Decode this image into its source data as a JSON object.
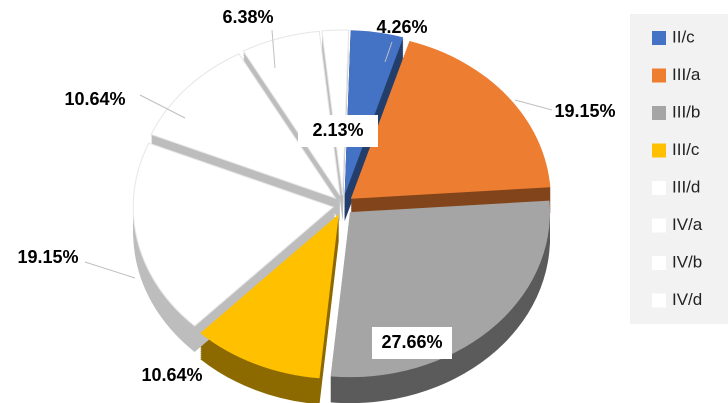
{
  "chart_data": {
    "type": "pie",
    "categories": [
      "II/c",
      "III/a",
      "III/b",
      "III/c",
      "III/d",
      "IV/a",
      "IV/b",
      "IV/d"
    ],
    "values": [
      4.26,
      19.15,
      27.66,
      10.64,
      19.15,
      10.64,
      6.38,
      2.13
    ],
    "value_labels": [
      "4.26%",
      "19.15%",
      "27.66%",
      "10.64%",
      "19.15%",
      "10.64%",
      "6.38%",
      "2.13%"
    ],
    "colors": [
      "#4472c4",
      "#ed7d31",
      "#a5a5a5",
      "#ffc000",
      "#ffffff",
      "#ffffff",
      "#ffffff",
      "#ffffff"
    ],
    "legend": "right"
  }
}
